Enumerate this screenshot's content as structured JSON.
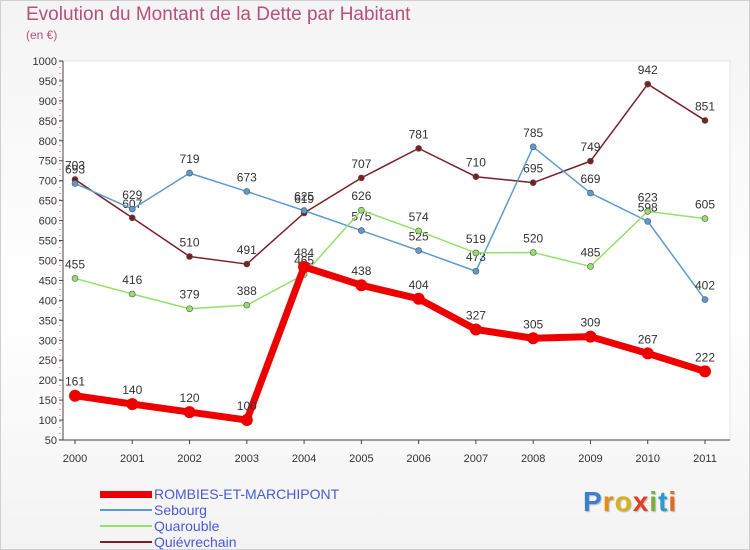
{
  "title": "Evolution du Montant de la Dette par Habitant",
  "subtitle": "(en €)",
  "brand": {
    "letters": [
      "P",
      "r",
      "o",
      "x",
      "i",
      "t",
      "i"
    ],
    "colors": [
      "#3a7fd0",
      "#e88a1a",
      "#d8b020",
      "#e04020",
      "#7ab03a",
      "#2a9ad0",
      "#e06a20"
    ]
  },
  "chart_data": {
    "type": "line",
    "x": [
      "2000",
      "2001",
      "2002",
      "2003",
      "2004",
      "2005",
      "2006",
      "2007",
      "2008",
      "2009",
      "2010",
      "2011"
    ],
    "ylim": [
      50,
      1000
    ],
    "yticks": [
      50,
      100,
      150,
      200,
      250,
      300,
      350,
      400,
      450,
      500,
      550,
      600,
      650,
      700,
      750,
      800,
      850,
      900,
      950,
      1000
    ],
    "grid": false,
    "legend_position": "bottom-left",
    "series": [
      {
        "name": "Quiévrechain",
        "color": "#7a1f24",
        "values": [
          703,
          607,
          510,
          491,
          619,
          707,
          781,
          710,
          695,
          749,
          942,
          851
        ],
        "labels": [
          "703",
          "607",
          "510",
          "491",
          "619",
          "707",
          "781",
          "710",
          "695",
          "749",
          "942",
          "851"
        ]
      },
      {
        "name": "Sebourg",
        "color": "#5d9ad0",
        "values": [
          693,
          629,
          719,
          673,
          625,
          575,
          525,
          473,
          785,
          669,
          598,
          402
        ],
        "labels": [
          "693",
          "629",
          "719",
          "673",
          "625",
          "575",
          "525",
          "473",
          "785",
          "669",
          "598",
          "402"
        ]
      },
      {
        "name": "Quarouble",
        "color": "#95e06a",
        "values": [
          455,
          416,
          379,
          388,
          465,
          626,
          574,
          519,
          520,
          485,
          623,
          605
        ],
        "labels": [
          "455",
          "416",
          "379",
          "388",
          "465",
          "626",
          "574",
          "519",
          "520",
          "485",
          "623",
          "605"
        ]
      },
      {
        "name": "ROMBIES-ET-MARCHIPONT",
        "color": "#ee0000",
        "values": [
          161,
          140,
          120,
          100,
          484,
          438,
          404,
          327,
          305,
          309,
          267,
          222
        ],
        "labels": [
          "161",
          "140",
          "120",
          "100",
          "484",
          "438",
          "404",
          "327",
          "305",
          "309",
          "267",
          "222"
        ]
      }
    ]
  },
  "legend": [
    {
      "label": "ROMBIES-ET-MARCHIPONT",
      "color": "#ee0000",
      "thick": 7
    },
    {
      "label": "Sebourg",
      "color": "#5d9ad0",
      "thick": 2
    },
    {
      "label": "Quarouble",
      "color": "#95e06a",
      "thick": 2
    },
    {
      "label": "Quiévrechain",
      "color": "#7a1f24",
      "thick": 2
    }
  ]
}
